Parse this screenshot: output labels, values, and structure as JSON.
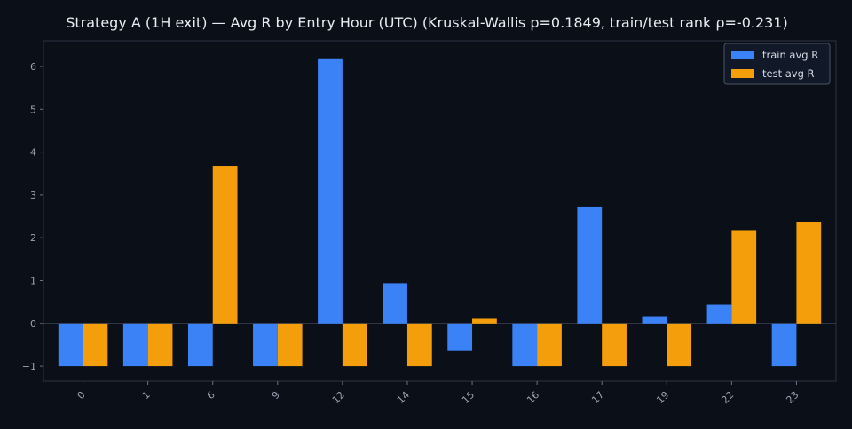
{
  "chart_data": {
    "type": "bar",
    "title": "Strategy A (1H exit) — Avg R by Entry Hour (UTC) (Kruskal-Wallis p=0.1849, train/test rank ρ=-0.231)",
    "xlabel": "",
    "ylabel": "",
    "categories": [
      "0",
      "1",
      "6",
      "9",
      "12",
      "14",
      "15",
      "16",
      "17",
      "19",
      "22",
      "23"
    ],
    "series": [
      {
        "name": "train avg R",
        "color": "#3b82f6",
        "values": [
          -1.0,
          -1.0,
          -1.0,
          -1.0,
          6.17,
          0.94,
          -0.64,
          -1.0,
          2.73,
          0.15,
          0.44,
          -1.0
        ]
      },
      {
        "name": "test avg R",
        "color": "#f59e0b",
        "values": [
          -1.0,
          -1.0,
          3.68,
          -1.0,
          -1.0,
          -1.0,
          0.11,
          -1.0,
          -1.0,
          -1.0,
          2.16,
          2.36
        ]
      }
    ],
    "ylim": [
      -1.35,
      6.6
    ],
    "yticks": [
      -1,
      0,
      1,
      2,
      3,
      4,
      5,
      6
    ],
    "ytick_labels": [
      "−1",
      "0",
      "1",
      "2",
      "3",
      "4",
      "5",
      "6"
    ],
    "legend_position": "top-right",
    "grid": false,
    "zero_line": true
  }
}
